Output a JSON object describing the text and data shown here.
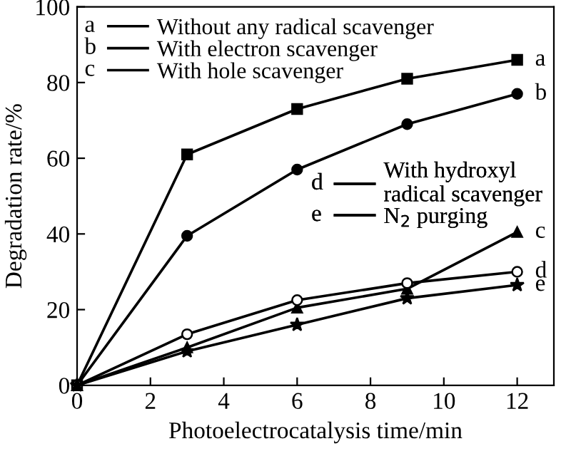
{
  "chart_data": {
    "type": "line",
    "xlabel": "Photoelectrocatalysis time/min",
    "ylabel": "Degradation rate/%",
    "x": [
      0,
      3,
      6,
      9,
      12
    ],
    "series": [
      {
        "name": "Without any radical scavenger",
        "color": "#000000",
        "marker": "square",
        "values": [
          0,
          61,
          73,
          81,
          86
        ]
      },
      {
        "name": "With electron scavenger",
        "color": "#000000",
        "marker": "circle",
        "values": [
          0,
          39.5,
          57,
          69,
          77
        ]
      },
      {
        "name": "With hole scavenger",
        "color": "#000000",
        "marker": "triangle",
        "values": [
          0,
          10,
          20.5,
          25.5,
          40.5
        ]
      },
      {
        "name": "With hydroxyl\nradical scavenger",
        "color": "#000000",
        "marker": "circle",
        "values": [
          0,
          13.5,
          22.5,
          27,
          30
        ]
      },
      {
        "name": "N$_{2}$ purging",
        "color": "#000000",
        "marker": "star",
        "values": [
          0,
          9,
          16,
          23,
          26.5
        ]
      }
    ],
    "annotations": [
      "a",
      "b",
      "c",
      "d",
      "e",
      "a",
      "b",
      "c",
      "d",
      "e"
    ],
    "xlim": [
      0,
      13
    ],
    "ylim": [
      0,
      100
    ],
    "xticks": [
      0,
      2,
      4,
      6,
      8,
      10,
      12
    ],
    "yticks": [
      0,
      20,
      40,
      60,
      80,
      100
    ],
    "legend": "top left",
    "grid": false,
    "line_style": "solid"
  }
}
